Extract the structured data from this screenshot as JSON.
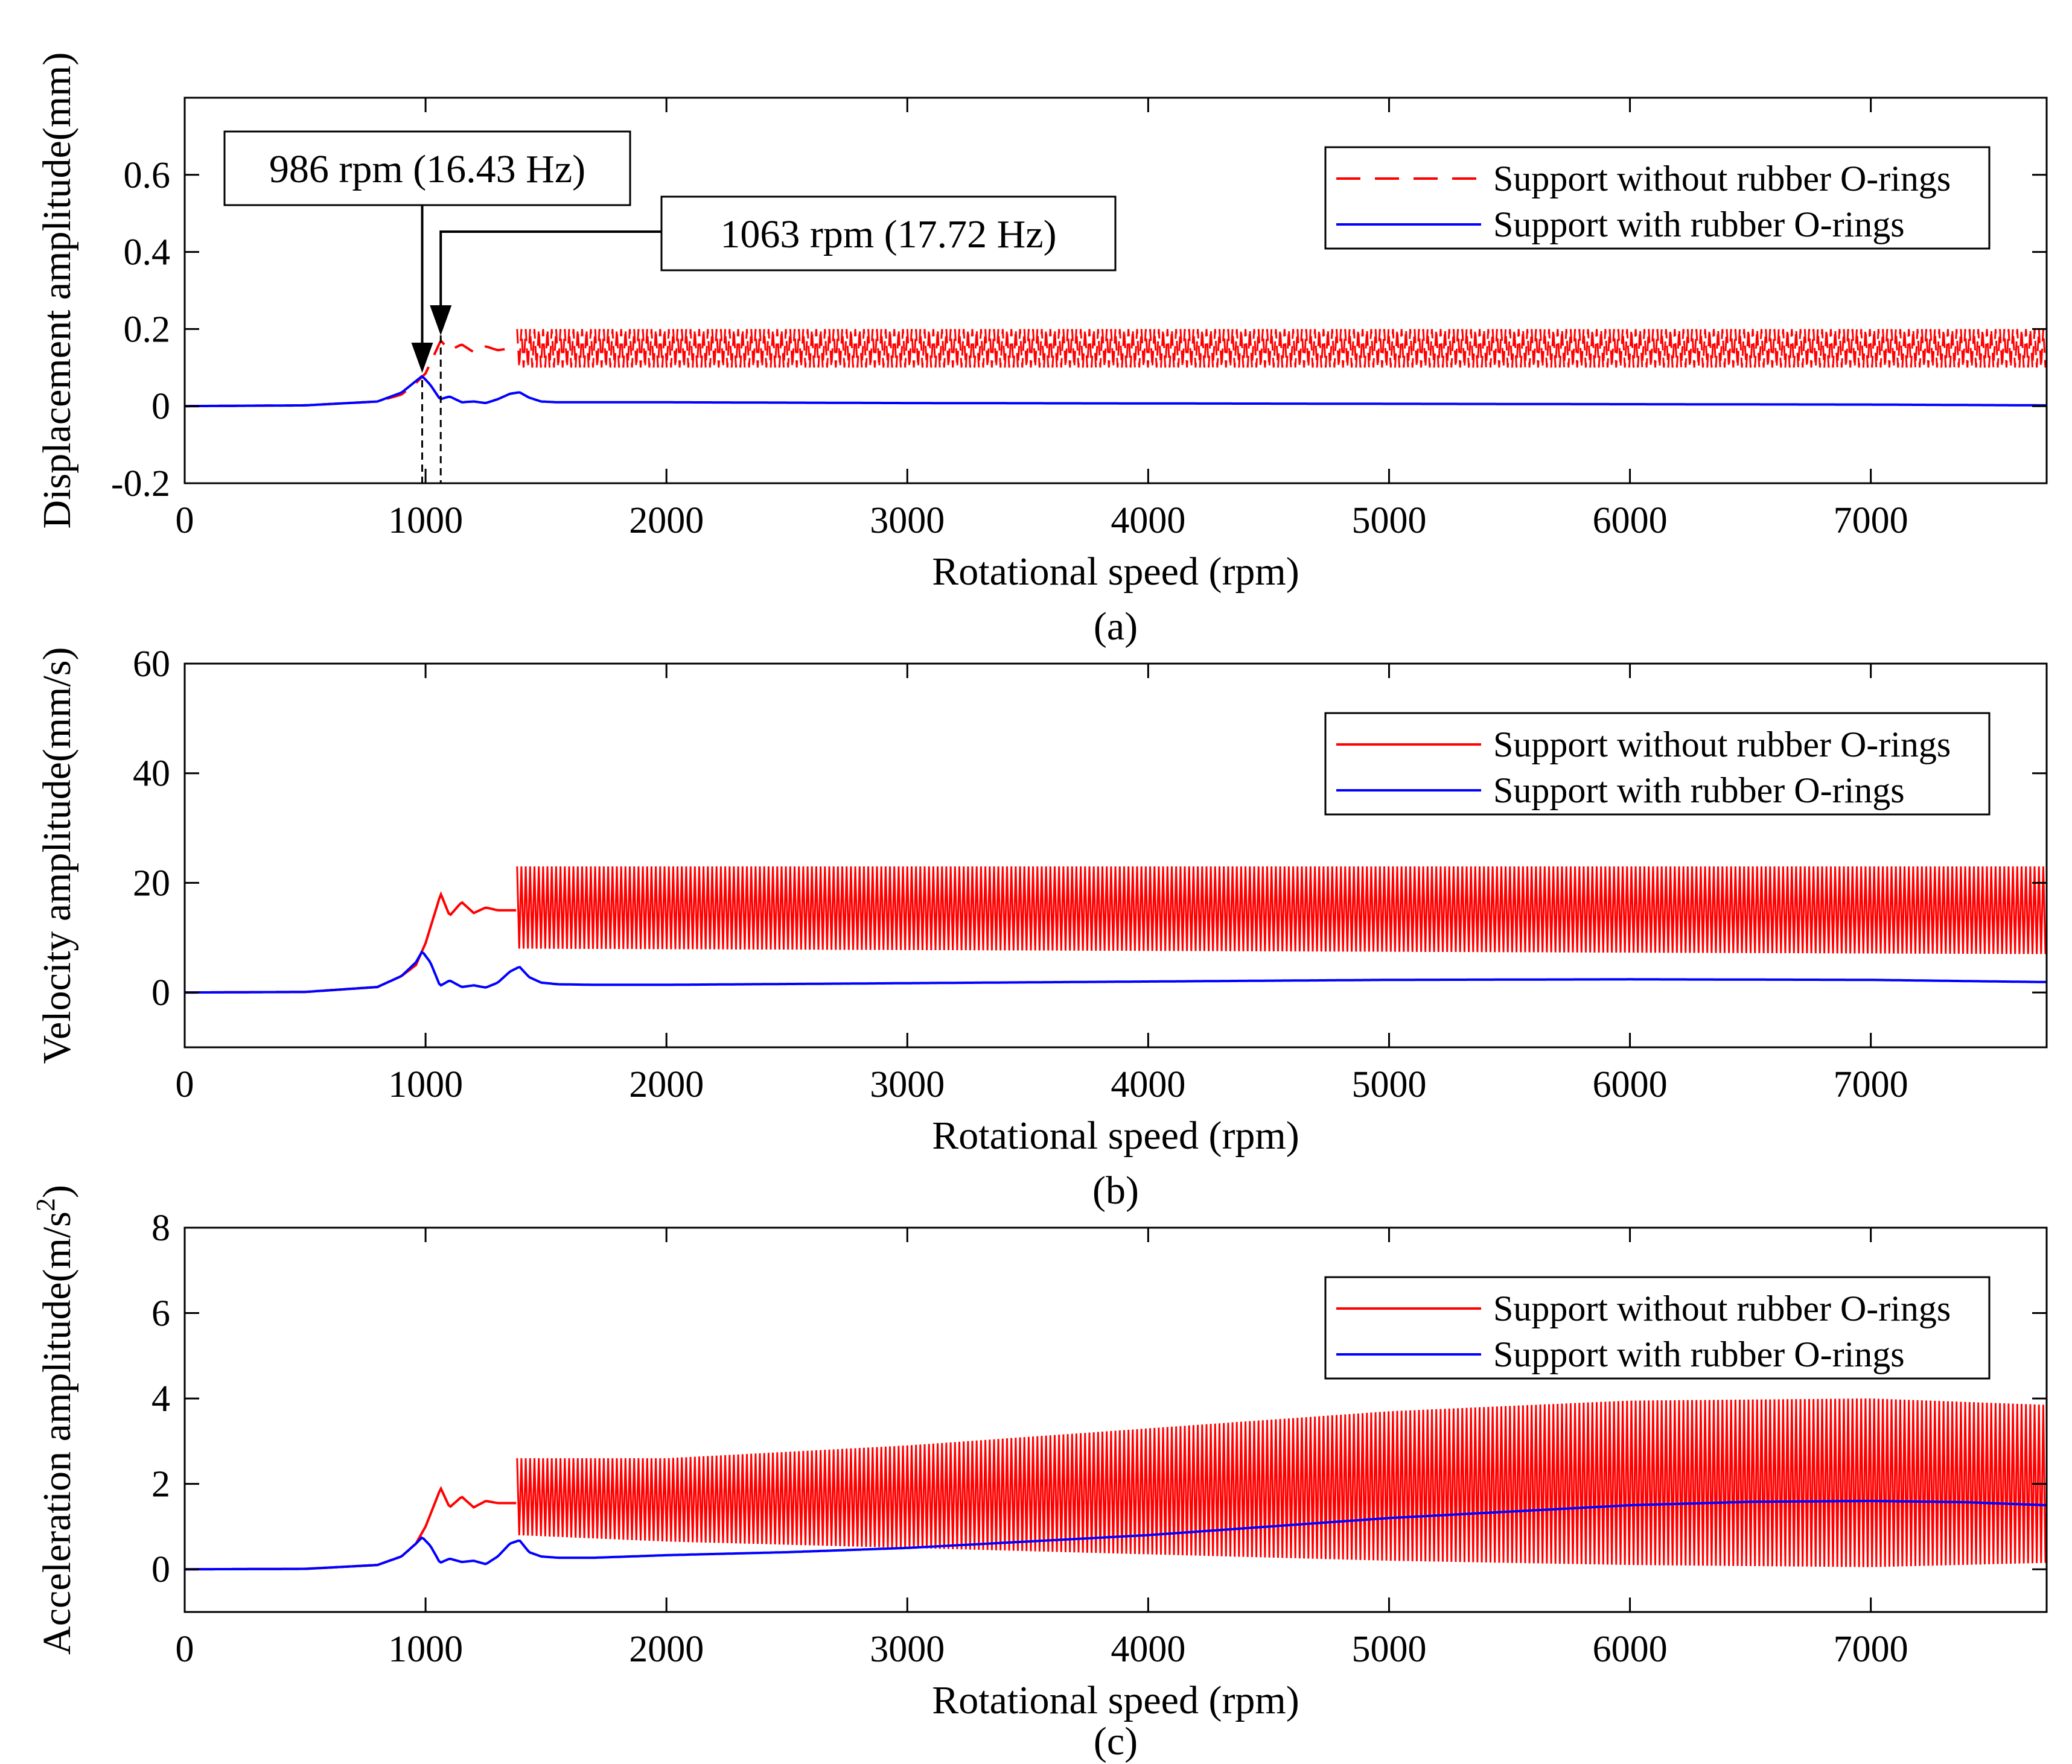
{
  "colors": {
    "red": "#ff0000",
    "blue": "#0000ff",
    "axis": "#000000",
    "background": "#ffffff"
  },
  "chart_data": [
    {
      "panel": "a",
      "type": "line",
      "caption": "(a)",
      "xlabel": "Rotational speed (rpm)",
      "ylabel": "Displacement amplitude(mm)",
      "xlim": [
        0,
        7730
      ],
      "ylim": [
        -0.2,
        0.8
      ],
      "xticks": [
        0,
        1000,
        2000,
        3000,
        4000,
        5000,
        6000,
        7000
      ],
      "yticks": [
        -0.2,
        0,
        0.2,
        0.4,
        0.6
      ],
      "ytick_labels": [
        "-0.2",
        "0",
        "0.2",
        "0.4",
        "0.6"
      ],
      "legend_position": "top-right",
      "series": [
        {
          "name": "Support without rubber O-rings",
          "color": "#ff0000",
          "style": "dashed",
          "x": [
            0,
            500,
            800,
            900,
            960,
            1000,
            1063,
            1100,
            1150,
            1200,
            1250,
            1300,
            1350,
            1400,
            2000,
            3000,
            4000,
            5000,
            6000,
            7000,
            7730
          ],
          "y": [
            0,
            0.002,
            0.012,
            0.03,
            0.06,
            0.085,
            0.17,
            0.145,
            0.16,
            0.14,
            0.155,
            0.145,
            0.15,
            0.15,
            0.15,
            0.15,
            0.15,
            0.15,
            0.15,
            0.15,
            0.15
          ],
          "oscillation_band": [
            0.1,
            0.2
          ],
          "oscillation_start": 1380
        },
        {
          "name": "Support with rubber O-rings",
          "color": "#0000ff",
          "style": "solid",
          "x": [
            0,
            500,
            800,
            900,
            960,
            986,
            1020,
            1060,
            1100,
            1150,
            1200,
            1250,
            1300,
            1350,
            1390,
            1430,
            1480,
            1550,
            1700,
            2000,
            3000,
            4000,
            5000,
            6000,
            7000,
            7730
          ],
          "y": [
            0,
            0.002,
            0.012,
            0.035,
            0.065,
            0.078,
            0.055,
            0.018,
            0.025,
            0.01,
            0.012,
            0.008,
            0.018,
            0.032,
            0.036,
            0.022,
            0.012,
            0.01,
            0.01,
            0.01,
            0.008,
            0.007,
            0.006,
            0.005,
            0.004,
            0.002
          ]
        }
      ],
      "annotations": [
        {
          "text": "986 rpm (16.43 Hz)",
          "x": 986
        },
        {
          "text": "1063 rpm (17.72 Hz)",
          "x": 1063
        }
      ]
    },
    {
      "panel": "b",
      "type": "line",
      "caption": "(b)",
      "xlabel": "Rotational speed (rpm)",
      "ylabel": "Velocity amplitude(mm/s)",
      "xlim": [
        0,
        7730
      ],
      "ylim": [
        -10,
        60
      ],
      "xticks": [
        0,
        1000,
        2000,
        3000,
        4000,
        5000,
        6000,
        7000
      ],
      "yticks": [
        0,
        20,
        40,
        60
      ],
      "ytick_labels": [
        "0",
        "20",
        "40",
        "60"
      ],
      "legend_position": "top-right",
      "series": [
        {
          "name": "Support without rubber O-rings",
          "color": "#ff0000",
          "style": "solid",
          "x": [
            0,
            500,
            800,
            900,
            960,
            1000,
            1063,
            1100,
            1150,
            1200,
            1250,
            1300,
            1350,
            1400,
            1600,
            2000,
            3000,
            4000,
            5000,
            6000,
            7000,
            7730
          ],
          "y": [
            0,
            0.1,
            1,
            3,
            5,
            9,
            18,
            14,
            16.5,
            14.5,
            15.5,
            15,
            15,
            15,
            15,
            15,
            15,
            15,
            15,
            15,
            15,
            15
          ],
          "oscillation_band_start": [
            8,
            23
          ],
          "oscillation_band_end": [
            7,
            23
          ],
          "oscillation_start": 1380
        },
        {
          "name": "Support with rubber O-rings",
          "color": "#0000ff",
          "style": "solid",
          "x": [
            0,
            500,
            800,
            900,
            960,
            986,
            1020,
            1060,
            1100,
            1150,
            1200,
            1250,
            1300,
            1350,
            1390,
            1430,
            1480,
            1550,
            1700,
            2000,
            3000,
            4000,
            5000,
            6000,
            7000,
            7730
          ],
          "y": [
            0,
            0.1,
            1,
            3,
            5.5,
            7.5,
            5.5,
            1.2,
            2.2,
            1,
            1.3,
            0.9,
            1.8,
            3.8,
            4.7,
            2.8,
            1.8,
            1.5,
            1.4,
            1.4,
            1.7,
            2,
            2.3,
            2.4,
            2.3,
            1.9
          ]
        }
      ]
    },
    {
      "panel": "c",
      "type": "line",
      "caption": "(c)",
      "xlabel": "Rotational speed (rpm)",
      "ylabel": "Acceleration amplitude(m/s",
      "ylabel_superscript": "2",
      "ylabel_suffix": ")",
      "xlim": [
        0,
        7730
      ],
      "ylim": [
        -1,
        8
      ],
      "xticks": [
        0,
        1000,
        2000,
        3000,
        4000,
        5000,
        6000,
        7000
      ],
      "yticks": [
        0,
        2,
        4,
        6,
        8
      ],
      "ytick_labels": [
        "0",
        "2",
        "4",
        "6",
        "8"
      ],
      "legend_position": "top-right",
      "series": [
        {
          "name": "Support without rubber O-rings",
          "color": "#ff0000",
          "style": "solid",
          "x": [
            0,
            500,
            800,
            900,
            960,
            1000,
            1063,
            1100,
            1150,
            1200,
            1250,
            1300,
            1350,
            1400
          ],
          "y": [
            0,
            0.01,
            0.1,
            0.3,
            0.6,
            1,
            1.9,
            1.45,
            1.7,
            1.45,
            1.6,
            1.55,
            1.55,
            1.55
          ],
          "oscillation_start": 1380,
          "oscillation_envelope_x": [
            1380,
            2000,
            3000,
            4000,
            5000,
            6000,
            7000,
            7730
          ],
          "oscillation_envelope_upper": [
            2.6,
            2.6,
            2.9,
            3.3,
            3.7,
            3.95,
            4.0,
            3.85
          ],
          "oscillation_envelope_lower": [
            0.8,
            0.65,
            0.5,
            0.35,
            0.2,
            0.1,
            0.05,
            0.15
          ]
        },
        {
          "name": "Support with rubber O-rings",
          "color": "#0000ff",
          "style": "solid",
          "x": [
            0,
            500,
            800,
            900,
            960,
            986,
            1020,
            1060,
            1100,
            1150,
            1200,
            1250,
            1300,
            1350,
            1390,
            1430,
            1480,
            1550,
            1700,
            2000,
            2500,
            3000,
            3500,
            4000,
            4500,
            5000,
            5500,
            6000,
            6500,
            7000,
            7400,
            7730
          ],
          "y": [
            0,
            0.01,
            0.1,
            0.3,
            0.6,
            0.75,
            0.55,
            0.15,
            0.25,
            0.17,
            0.2,
            0.12,
            0.3,
            0.6,
            0.68,
            0.4,
            0.3,
            0.27,
            0.27,
            0.33,
            0.4,
            0.5,
            0.65,
            0.8,
            1.0,
            1.2,
            1.35,
            1.5,
            1.58,
            1.6,
            1.57,
            1.5
          ]
        }
      ]
    }
  ]
}
